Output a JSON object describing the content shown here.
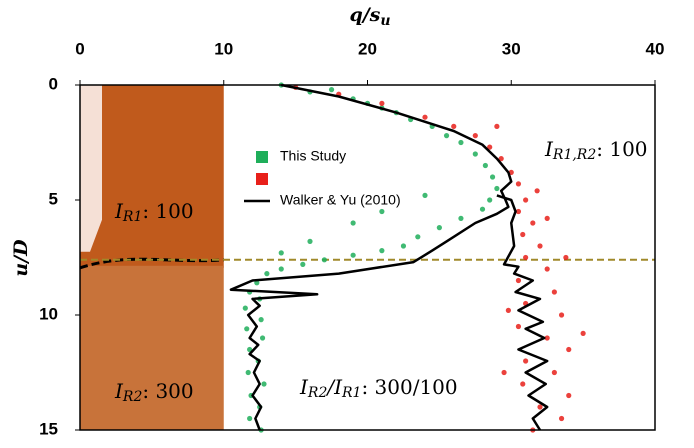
{
  "chart_data": {
    "type": "scatter",
    "xlabel": {
      "text": "q/s",
      "sub": "u"
    },
    "ylabel": "u/D",
    "xlim": [
      0,
      40
    ],
    "xticks": [
      0,
      10,
      20,
      30,
      40
    ],
    "ylim": [
      15,
      0
    ],
    "yticks": [
      0,
      5,
      10,
      15
    ],
    "shaded_xmax": 10,
    "reference_line": 7.6,
    "series": [
      {
        "name": "This Study",
        "color": "#1fae5a",
        "kind": "points",
        "x": [
          14,
          16,
          17.5,
          19,
          20,
          21,
          22,
          23,
          24.5,
          25.5,
          26.5,
          27.5,
          28.2,
          28.7,
          29,
          28.5,
          28,
          26.5,
          25,
          23.5,
          22.5,
          21,
          19,
          17,
          15.5,
          14,
          13,
          12.3,
          11.8,
          12.5,
          11.5,
          12.6,
          11.6,
          12.7,
          11.8,
          12.4,
          11.7,
          12.8,
          11.9,
          12.5,
          11.8,
          12.6,
          24,
          21,
          19,
          16,
          14
        ],
        "y": [
          0,
          0.3,
          0.2,
          0.6,
          0.8,
          1,
          1.2,
          1.5,
          1.8,
          2.2,
          2.5,
          3,
          3.5,
          4,
          4.5,
          5,
          5.4,
          5.8,
          6.2,
          6.6,
          7,
          7.2,
          7.4,
          7.6,
          7.8,
          8,
          8.2,
          8.6,
          9,
          9.3,
          9.7,
          10.2,
          10.6,
          11,
          11.5,
          12,
          12.5,
          13,
          13.5,
          14,
          14.5,
          15,
          4.8,
          5.5,
          6,
          6.8,
          7.3
        ]
      },
      {
        "name": "",
        "color": "#e8201a",
        "kind": "points",
        "x": [
          15,
          18,
          21,
          24,
          26,
          27.5,
          28.5,
          29.3,
          30,
          30.5,
          31,
          30.5,
          31.5,
          30.8,
          32,
          31,
          32.5,
          30.5,
          33,
          31,
          33.5,
          30.5,
          32.5,
          34,
          31,
          33,
          30.8,
          34,
          32,
          33.5,
          31.5,
          29.5,
          35,
          29.8,
          33.8,
          32.5,
          31.8,
          29
        ],
        "y": [
          0.1,
          0.4,
          0.8,
          1.4,
          1.8,
          2.2,
          2.7,
          3.2,
          3.8,
          4.3,
          5,
          5.5,
          6,
          6.5,
          7,
          7.5,
          8,
          8.5,
          9,
          9.5,
          10,
          10.5,
          11,
          11.5,
          12,
          12.5,
          13,
          13.5,
          14,
          14.5,
          15,
          12.5,
          10.8,
          9.8,
          7.5,
          5.8,
          4.6,
          1.8
        ]
      },
      {
        "name": "Walker & Yu (2010)",
        "color": "#000000",
        "kind": "line",
        "x": [
          14,
          18,
          22,
          26,
          28,
          29,
          29.8,
          30,
          29.3,
          29.6,
          29.8,
          29,
          27.5,
          25.5,
          24.5,
          23.2,
          18,
          12,
          10.5,
          16.5,
          12,
          12.5,
          11.7,
          12.3,
          11.8,
          12.4,
          11.8,
          12.5,
          12.1,
          12.5,
          12,
          12.6,
          12.2,
          12.5,
          null,
          29,
          30,
          30.3,
          30,
          30.2,
          29.5,
          30.5,
          30.2,
          31.5,
          30.3,
          32,
          30.5,
          32.2,
          31,
          32.3,
          30.5,
          32.5,
          31,
          32.4,
          31.2,
          32.5,
          31.5,
          32
        ],
        "y": [
          0,
          0.5,
          1.2,
          2,
          2.6,
          3.2,
          3.8,
          4.2,
          4.6,
          5,
          5.3,
          5.6,
          6,
          6.8,
          7.2,
          7.7,
          8.2,
          8.5,
          8.9,
          9.1,
          9.3,
          9.6,
          10,
          10.5,
          11,
          11.3,
          11.7,
          12,
          12.5,
          13,
          13.5,
          14,
          14.5,
          15,
          null,
          4.8,
          5,
          5.5,
          6,
          7,
          7.8,
          7.9,
          8.2,
          8.5,
          9,
          9.3,
          9.8,
          10.3,
          10.6,
          11,
          11.5,
          12,
          12.5,
          13,
          13.5,
          14,
          14.5,
          15
        ]
      }
    ],
    "legend_entries": [
      {
        "label": "This Study",
        "color": "#1fae5a"
      },
      {
        "label": "",
        "color": "#e8201a"
      }
    ],
    "annotations": [
      {
        "text": "I",
        "sub": "R1",
        "rest": ": 100"
      },
      {
        "text": "I",
        "sub": "R2",
        "rest": ": 300"
      },
      {
        "text": "I",
        "sub": "R1,R2",
        "rest": ": 100"
      },
      {
        "text": "I",
        "sub": "R2",
        "rest": "/I",
        "sub2": "R1",
        "rest2": ": 300/100"
      }
    ]
  }
}
